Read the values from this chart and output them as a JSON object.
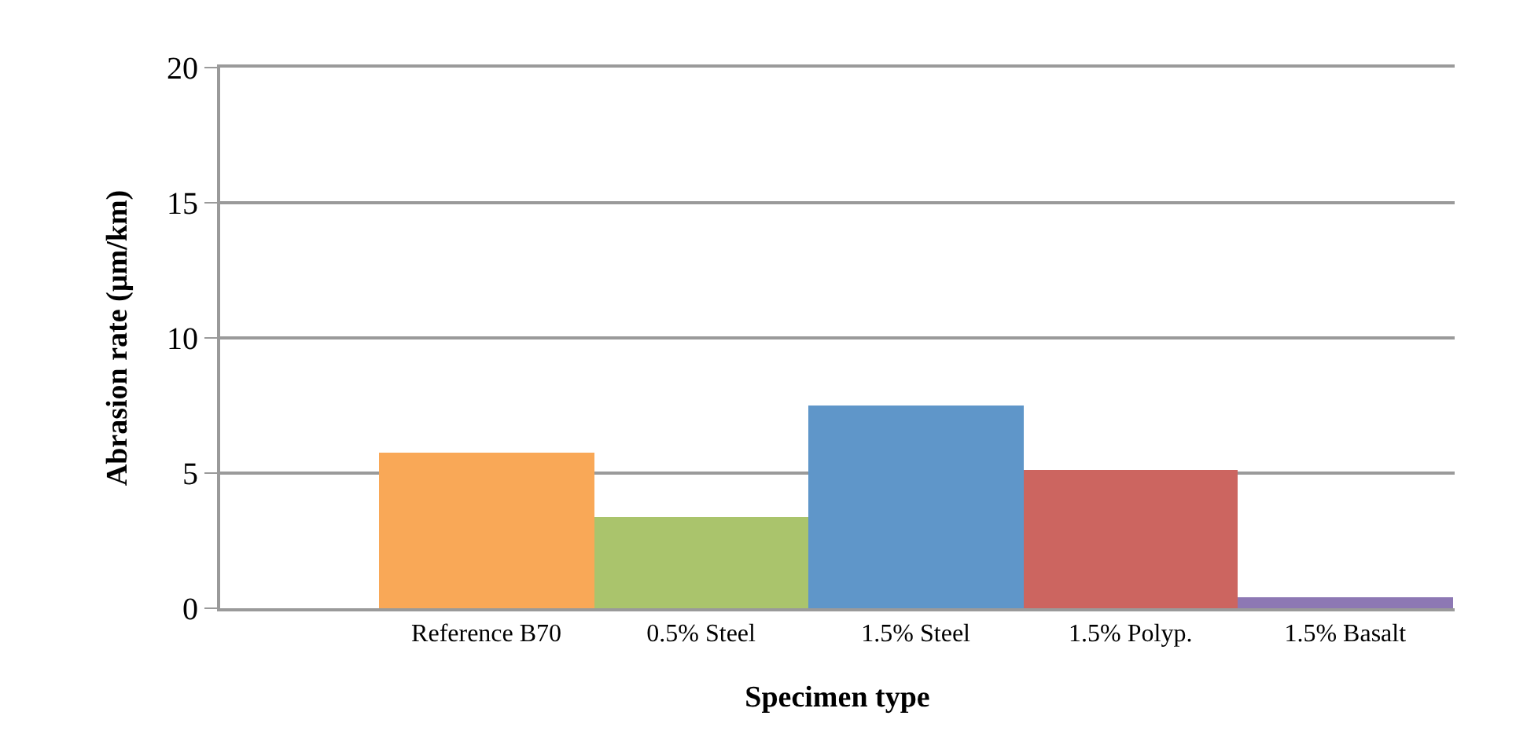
{
  "chart_data": {
    "type": "bar",
    "xlabel": "Specimen type",
    "ylabel": "Abrasion rate (µm/km)",
    "categories": [
      "Reference B70",
      "0.5% Steel",
      "1.5% Steel",
      "1.5% Polyp.",
      "1.5% Basalt"
    ],
    "values": [
      5.74,
      3.37,
      7.49,
      5.09,
      0.41
    ],
    "colors": [
      "#f9a857",
      "#aac46c",
      "#5f96c9",
      "#cc6560",
      "#8d78b4"
    ],
    "ylim": [
      0,
      20
    ],
    "yticks": [
      0,
      5,
      10,
      15,
      20
    ],
    "grid": "y"
  }
}
